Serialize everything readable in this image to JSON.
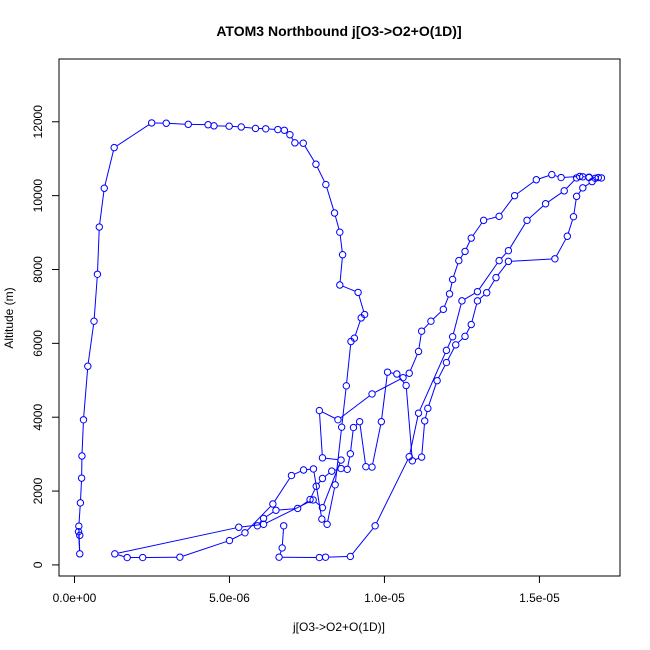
{
  "chart_data": {
    "type": "scatter",
    "title": "ATOM3 Northbound j[O3->O2+O(1D)]",
    "xlabel": "j[O3->O2+O(1D)]",
    "ylabel": "Altitude (m)",
    "xlim": [
      -5e-07,
      1.76e-05
    ],
    "ylim": [
      -300,
      13700
    ],
    "x_ticks": [
      0,
      5e-06,
      1e-05,
      1.5e-05
    ],
    "x_tick_labels": [
      "0.0e+00",
      "5.0e-06",
      "1.0e-05",
      "1.5e-05"
    ],
    "y_ticks": [
      0,
      2000,
      4000,
      6000,
      8000,
      10000,
      12000
    ],
    "y_tick_labels": [
      "0",
      "2000",
      "4000",
      "6000",
      "8000",
      "10000",
      "12000"
    ],
    "grid": false,
    "legend": "none",
    "series": [
      {
        "color": "#0000ff",
        "style": "points-connected-by-lines",
        "x": [
          1.7e-07,
          1.3e-07,
          1.7e-07,
          1.4e-07,
          1.9e-07,
          2.3e-07,
          2.4e-07,
          2.9e-07,
          4.3e-07,
          6.3e-07,
          7.4e-07,
          8e-07,
          9.6e-07,
          1.28e-06,
          2.49e-06,
          2.96e-06,
          3.67e-06,
          4.31e-06,
          4.5e-06,
          4.99e-06,
          5.38e-06,
          5.84e-06,
          6.17e-06,
          6.56e-06,
          6.77e-06,
          6.95e-06,
          7.11e-06,
          7.38e-06,
          7.79e-06,
          8.11e-06,
          8.39e-06,
          8.56e-06,
          8.65e-06,
          8.56e-06,
          9.15e-06,
          9.36e-06,
          9.25e-06,
          9.03e-06,
          8.92e-06,
          8.77e-06,
          8.62e-06,
          8.41e-06,
          8.15e-06,
          7.98e-06,
          7.71e-06,
          7.39e-06,
          7e-06,
          6.4e-06,
          5.5e-06,
          5e-06,
          3.4e-06,
          2.2e-06,
          1.7e-06,
          1.3e-06,
          5.3e-06,
          6.1e-06,
          7.7e-06,
          8e-06,
          8.6e-06,
          8e-06,
          7.9e-06,
          8.5e-06,
          9.6e-06,
          1.06e-05,
          1.08e-05,
          1.11e-05,
          1.12e-05,
          1.15e-05,
          1.19e-05,
          1.21e-05,
          1.22e-05,
          1.24e-05,
          1.26e-05,
          1.28e-05,
          1.32e-05,
          1.37e-05,
          1.42e-05,
          1.49e-05,
          1.54e-05,
          1.57e-05,
          1.63e-05,
          1.66e-05,
          1.69e-05,
          1.7e-05,
          1.67e-05,
          1.64e-05,
          1.62e-05,
          1.61e-05,
          1.59e-05,
          1.55e-05,
          1.4e-05,
          1.36e-05,
          1.33e-05,
          1.3e-05,
          1.28e-05,
          1.26e-05,
          1.23e-05,
          1.2e-05,
          1.17e-05,
          1.14e-05,
          1.13e-05,
          1.12e-05,
          1.09e-05,
          1.07e-05,
          1.04e-05,
          1.01e-05,
          9.9e-06,
          9.6e-06,
          9.4e-06,
          9.2e-06,
          9e-06,
          8.9e-06,
          8.8e-06,
          8.6e-06,
          8.3e-06,
          8e-06,
          7.8e-06,
          7.6e-06,
          7.2e-06,
          6.5e-06,
          6.1e-06,
          5.9e-06
        ],
        "y": [
          800,
          900,
          300,
          1050,
          1680,
          2350,
          2950,
          3930,
          5380,
          6600,
          7870,
          9150,
          10200,
          11300,
          11970,
          11960,
          11930,
          11920,
          11890,
          11880,
          11860,
          11820,
          11810,
          11790,
          11770,
          11650,
          11430,
          11420,
          10850,
          10300,
          9530,
          9010,
          8400,
          7580,
          7380,
          6780,
          6690,
          6140,
          6050,
          4850,
          3730,
          2170,
          1100,
          1240,
          2600,
          2570,
          2420,
          1650,
          870,
          660,
          210,
          200,
          200,
          300,
          1020,
          1100,
          1760,
          1550,
          2840,
          2900,
          4180,
          3930,
          4630,
          5070,
          5190,
          5780,
          6330,
          6600,
          6920,
          7340,
          7730,
          8240,
          8490,
          8850,
          9330,
          9440,
          10000,
          10430,
          10570,
          10490,
          10520,
          10500,
          10490,
          10480,
          10380,
          10210,
          9980,
          9430,
          8900,
          8290,
          8220,
          7780,
          7370,
          7150,
          6510,
          6190,
          5960,
          5480,
          4990,
          4240,
          3900,
          2920,
          2820,
          4860,
          5170,
          5220,
          3880,
          2650,
          2660,
          3880,
          3720,
          3010,
          2590,
          2610,
          2540,
          2340,
          2130,
          1770,
          1530,
          1480,
          1260,
          1060
        ]
      },
      {
        "color": "#0000ff",
        "style": "points-connected-by-lines",
        "x": [
          6.75e-06,
          6.7e-06,
          6.6e-06,
          7.9e-06,
          8.1e-06,
          8.9e-06,
          9.7e-06,
          1.08e-05,
          1.11e-05,
          1.2e-05,
          1.22e-05,
          1.25e-05,
          1.3e-05,
          1.37e-05,
          1.4e-05,
          1.46e-05,
          1.52e-05,
          1.58e-05,
          1.62e-05,
          1.64e-05,
          1.66e-05,
          1.68e-05
        ],
        "y": [
          1060,
          460,
          210,
          200,
          210,
          230,
          1060,
          2930,
          4110,
          5810,
          6180,
          7150,
          7400,
          8240,
          8510,
          9330,
          9780,
          10130,
          10480,
          10510,
          10490,
          10470
        ]
      }
    ]
  }
}
